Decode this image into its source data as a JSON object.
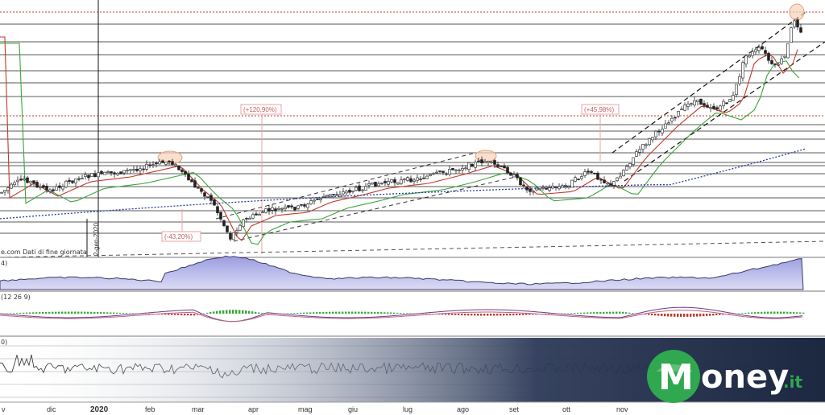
{
  "chart_data": {
    "type": "candlestick",
    "source_note": "e.com  Dati di fine giornata",
    "vertical_date_label": "2-gen-2020",
    "x_tick_labels": [
      "v",
      "dic",
      "2020",
      "feb",
      "mar",
      "apr",
      "mag",
      "giu",
      "lug",
      "ago",
      "set",
      "ott",
      "nov"
    ],
    "annotations": [
      {
        "text": "(+120,90%)"
      },
      {
        "text": "(-43,20%)"
      },
      {
        "text": "(+45,98%)"
      }
    ],
    "indicator_labels": [
      "4)",
      "(12 26 9)",
      "0)"
    ],
    "price_points": [
      {
        "x": "nov-2019",
        "y": 240
      },
      {
        "x": "dic-2019",
        "y": 222
      },
      {
        "x": "gen-2020",
        "y": 220
      },
      {
        "x": "feb-2020",
        "y": 214
      },
      {
        "x": "feb-2020",
        "y": 200
      },
      {
        "x": "mar-2020",
        "y": 240
      },
      {
        "x": "mar-2020",
        "y": 296
      },
      {
        "x": "apr-2020",
        "y": 270
      },
      {
        "x": "mag-2020",
        "y": 255
      },
      {
        "x": "giu-2020",
        "y": 235
      },
      {
        "x": "lug-2020",
        "y": 220
      },
      {
        "x": "ago-2020",
        "y": 205
      },
      {
        "x": "set-2020",
        "y": 235
      },
      {
        "x": "ott-2020",
        "y": 212
      },
      {
        "x": "ott-2020",
        "y": 230
      },
      {
        "x": "nov-2020",
        "y": 150
      },
      {
        "x": "nov-2020",
        "y": 60
      },
      {
        "x": "dic-2020",
        "y": 20
      }
    ]
  },
  "brand": {
    "logo_text": "oney",
    "logo_suffix": ".it",
    "logo_initial": "M",
    "accent": "#2fa84f",
    "band_color": "#1f2b46"
  },
  "colors": {
    "ma_red": "#c0392b",
    "ma_green": "#3aa53a",
    "ma_blue": "#2b3aa0",
    "area_fill": "#b7b8e6",
    "area_line": "#3a3a6a",
    "macd_pos": "#3aa53a",
    "macd_neg": "#c0392b",
    "annot": "#e8a6a6"
  }
}
